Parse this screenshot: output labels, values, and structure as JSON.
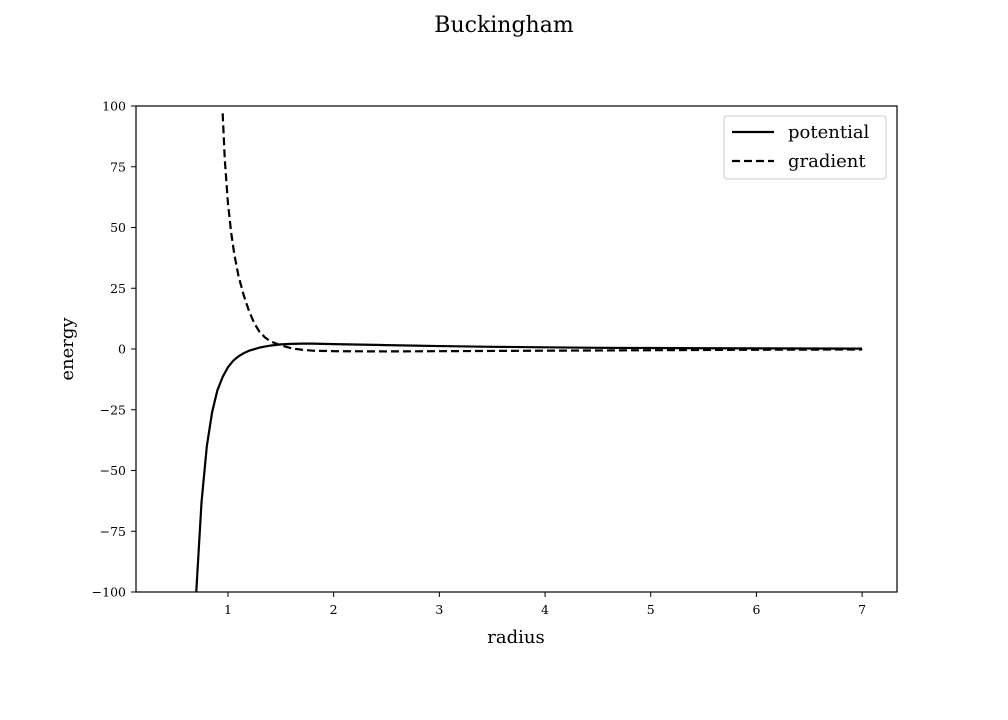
{
  "chart_data": {
    "type": "line",
    "title": "Buckingham",
    "xlabel": "radius",
    "ylabel": "energy",
    "xlim": [
      0.13,
      7.33
    ],
    "ylim": [
      -100,
      100
    ],
    "xticks": [
      1,
      2,
      3,
      4,
      5,
      6,
      7
    ],
    "xtick_labels": [
      "1",
      "2",
      "3",
      "4",
      "5",
      "6",
      "7"
    ],
    "yticks": [
      -100,
      -75,
      -50,
      -25,
      0,
      25,
      50,
      75,
      100
    ],
    "ytick_labels": [
      "−100",
      "−75",
      "−50",
      "−25",
      "0",
      "25",
      "50",
      "75",
      "100"
    ],
    "grid": false,
    "legend_position": "top-right",
    "series": [
      {
        "name": "potential",
        "style": "solid",
        "color": "#000000",
        "x": [
          0.7,
          0.75,
          0.8,
          0.85,
          0.9,
          0.95,
          1.0,
          1.05,
          1.1,
          1.15,
          1.2,
          1.3,
          1.4,
          1.5,
          1.6,
          1.7,
          1.8,
          2.0,
          2.5,
          3.0,
          3.5,
          4.0,
          4.5,
          5.0,
          5.5,
          6.0,
          6.5,
          7.0
        ],
        "y": [
          -100,
          -63,
          -40,
          -26,
          -17,
          -11.5,
          -7.5,
          -4.8,
          -3.0,
          -1.7,
          -0.7,
          0.6,
          1.4,
          1.9,
          2.1,
          2.2,
          2.2,
          2.0,
          1.6,
          1.2,
          0.9,
          0.7,
          0.5,
          0.4,
          0.3,
          0.25,
          0.2,
          0.15
        ]
      },
      {
        "name": "gradient",
        "style": "dashed",
        "color": "#000000",
        "x": [
          0.95,
          0.97,
          1.0,
          1.03,
          1.06,
          1.1,
          1.15,
          1.2,
          1.25,
          1.3,
          1.35,
          1.4,
          1.5,
          1.6,
          1.7,
          1.8,
          2.0,
          2.5,
          3.0,
          3.5,
          4.0,
          5.0,
          6.0,
          7.0
        ],
        "y": [
          97,
          78,
          60,
          48,
          39,
          30,
          22,
          15.5,
          10.5,
          7,
          4.8,
          3.2,
          1.5,
          0.3,
          -0.3,
          -0.7,
          -0.9,
          -1.0,
          -0.9,
          -0.8,
          -0.7,
          -0.5,
          -0.3,
          -0.2
        ]
      }
    ]
  }
}
